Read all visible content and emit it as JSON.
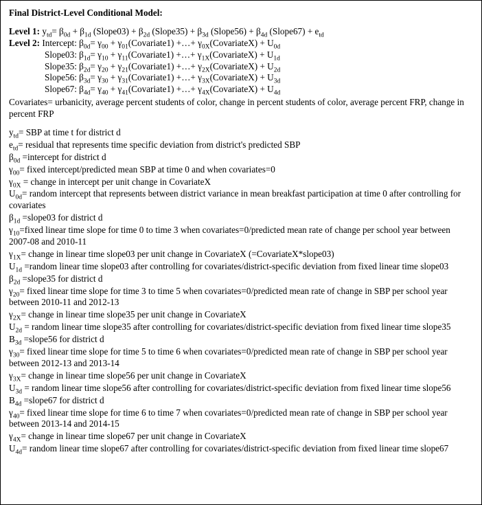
{
  "title": "Final District-Level Conditional Model:",
  "level1": {
    "label": "Level 1:",
    "eq": "y<sub>td</sub>= β<sub>0d</sub> + β<sub>1d</sub> (Slope03) + β<sub>2d</sub> (Slope35) + β<sub>3d</sub> (Slope56) + β<sub>4d</sub> (Slope67) + e<sub>td</sub>"
  },
  "level2": {
    "label": "Level 2:",
    "intercept": "Intercept: β<sub>0d</sub>= γ<sub>00</sub> + γ<sub>01</sub>(Covariate1) +…+ γ<sub>0X</sub>(CovariateX) + U<sub>0d</sub>",
    "slope03": "Slope03: β<sub>1d</sub>= γ<sub>10</sub> + γ<sub>11</sub>(Covariate1) +…+ γ<sub>1X</sub>(CovariateX) + U<sub>1d</sub>",
    "slope35": "Slope35: β<sub>2d</sub>= γ<sub>20</sub> + γ<sub>21</sub>(Covariate1) +…+ γ<sub>2X</sub>(CovariateX) + U<sub>2d</sub>",
    "slope56": "Slope56: β<sub>3d</sub>= γ<sub>30</sub> + γ<sub>31</sub>(Covariate1) +…+ γ<sub>3X</sub>(CovariateX) + U<sub>3d</sub>",
    "slope67": "Slope67: β<sub>4d</sub>= γ<sub>40</sub> + γ<sub>41</sub>(Covariate1) +…+ γ<sub>4X</sub>(CovariateX) + U<sub>4d</sub>"
  },
  "covariates": "Covariates= urbanicity, average percent students of color, change in percent students of color, average percent FRP, change in percent FRP",
  "defs": [
    "y<sub>td</sub>= SBP at time t for district d",
    "e<sub>td</sub>= residual that represents time specific deviation from district's predicted SBP",
    "β<sub>0d</sub> =intercept for district d",
    "γ<sub>00</sub>= fixed intercept/predicted mean SBP at time 0 and when covariates=0",
    "γ<sub>0X</sub> = change in intercept per unit change in CovariateX",
    "U<sub>0d</sub>= random intercept that represents between district variance in mean breakfast participation at time 0 after controlling for covariates",
    "β<sub>1d</sub> =slope03 for district d",
    "γ<sub>10</sub>=fixed linear time slope for time 0 to time 3 when covariates=0/predicted mean rate of change per school year between 2007-08 and 2010-11",
    "γ<sub>1X</sub>= change in linear time slope03 per unit change in CovariateX (=CovariateX*slope03)",
    "U<sub>1d</sub> =random linear time slope03 after controlling for covariates/district-specific deviation from fixed linear time slope03",
    "β<sub>2d</sub> =slope35 for district d",
    "γ<sub>20</sub>= fixed linear time slope for time 3 to time 5 when covariates=0/predicted mean rate of change in SBP per school year between 2010-11 and 2012-13",
    "γ<sub>2X</sub>= change in linear time slope35 per unit change in CovariateX",
    "U<sub>2d</sub> = random linear time slope35 after controlling for covariates/district-specific deviation from fixed linear time slope35",
    "Β<sub>3d</sub> =slope56 for district d",
    "γ<sub>30</sub>= fixed linear time slope for time 5 to time 6 when covariates=0/predicted mean rate of change in SBP per school year between 2012-13 and 2013-14",
    "γ<sub>3X</sub>= change in linear time slope56 per unit change in CovariateX",
    "U<sub>3d</sub> = random linear time slope56 after controlling for covariates/district-specific deviation from fixed linear time slope56",
    "Β<sub>4d</sub> =slope67 for district d",
    "γ<sub>40</sub>= fixed linear time slope for time 6 to time 7 when covariates=0/predicted mean rate of change in SBP per school year between 2013-14 and 2014-15",
    "γ<sub>4X</sub>= change in linear time slope67 per unit change in CovariateX",
    "U<sub>4d</sub>= random linear time slope67 after controlling for covariates/district-specific deviation from fixed linear time slope67"
  ]
}
